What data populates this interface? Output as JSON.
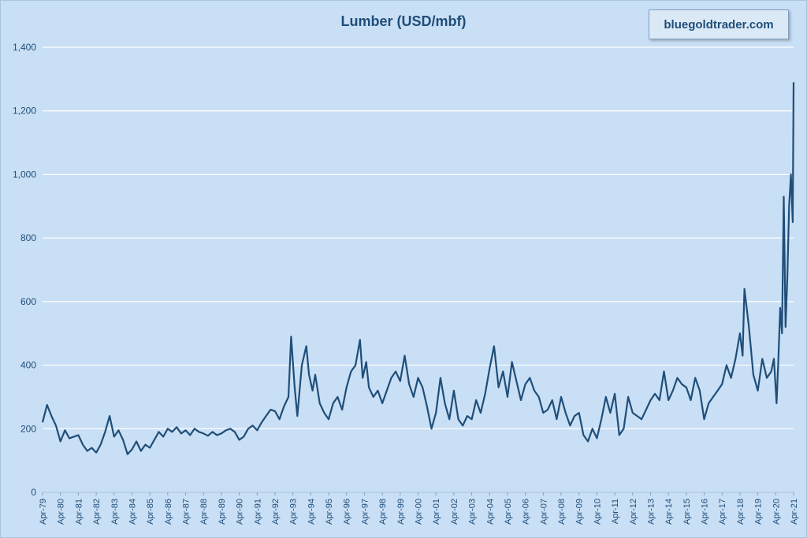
{
  "chart_data": {
    "type": "line",
    "title": "Lumber (USD/mbf)",
    "xlabel": "",
    "ylabel": "",
    "ylim": [
      0,
      1400
    ],
    "yticks": [
      0,
      200,
      400,
      600,
      800,
      1000,
      1200,
      1400
    ],
    "ytick_labels": [
      "0",
      "200",
      "400",
      "600",
      "800",
      "1,000",
      "1,200",
      "1,400"
    ],
    "xlim": [
      1979.25,
      2021.25
    ],
    "xtick_labels": [
      "Apr-79",
      "Apr-80",
      "Apr-81",
      "Apr-82",
      "Apr-83",
      "Apr-84",
      "Apr-85",
      "Apr-86",
      "Apr-87",
      "Apr-88",
      "Apr-89",
      "Apr-90",
      "Apr-91",
      "Apr-92",
      "Apr-93",
      "Apr-94",
      "Apr-95",
      "Apr-96",
      "Apr-97",
      "Apr-98",
      "Apr-99",
      "Apr-00",
      "Apr-01",
      "Apr-02",
      "Apr-03",
      "Apr-04",
      "Apr-05",
      "Apr-06",
      "Apr-07",
      "Apr-08",
      "Apr-09",
      "Apr-10",
      "Apr-11",
      "Apr-12",
      "Apr-13",
      "Apr-14",
      "Apr-15",
      "Apr-16",
      "Apr-17",
      "Apr-18",
      "Apr-19",
      "Apr-20",
      "Apr-21"
    ],
    "grid": true,
    "line_color": "#1f4e79",
    "series": [
      {
        "name": "",
        "x": [
          1979.25,
          1979.5,
          1979.75,
          1980.0,
          1980.25,
          1980.5,
          1980.75,
          1981.0,
          1981.25,
          1981.5,
          1981.75,
          1982.0,
          1982.25,
          1982.5,
          1982.75,
          1983.0,
          1983.25,
          1983.5,
          1983.75,
          1984.0,
          1984.25,
          1984.5,
          1984.75,
          1985.0,
          1985.25,
          1985.5,
          1985.75,
          1986.0,
          1986.25,
          1986.5,
          1986.75,
          1987.0,
          1987.25,
          1987.5,
          1987.75,
          1988.0,
          1988.25,
          1988.5,
          1988.75,
          1989.0,
          1989.25,
          1989.5,
          1989.75,
          1990.0,
          1990.25,
          1990.5,
          1990.75,
          1991.0,
          1991.25,
          1991.5,
          1991.75,
          1992.0,
          1992.25,
          1992.5,
          1992.75,
          1993.0,
          1993.15,
          1993.35,
          1993.5,
          1993.75,
          1994.0,
          1994.15,
          1994.35,
          1994.5,
          1994.75,
          1995.0,
          1995.25,
          1995.5,
          1995.75,
          1996.0,
          1996.25,
          1996.5,
          1996.75,
          1997.0,
          1997.15,
          1997.35,
          1997.5,
          1997.75,
          1998.0,
          1998.25,
          1998.5,
          1998.75,
          1999.0,
          1999.25,
          1999.5,
          1999.75,
          2000.0,
          2000.25,
          2000.5,
          2000.75,
          2001.0,
          2001.25,
          2001.5,
          2001.75,
          2002.0,
          2002.25,
          2002.5,
          2002.75,
          2003.0,
          2003.25,
          2003.5,
          2003.75,
          2004.0,
          2004.25,
          2004.5,
          2004.75,
          2005.0,
          2005.25,
          2005.5,
          2005.75,
          2006.0,
          2006.25,
          2006.5,
          2006.75,
          2007.0,
          2007.25,
          2007.5,
          2007.75,
          2008.0,
          2008.25,
          2008.5,
          2008.75,
          2009.0,
          2009.25,
          2009.5,
          2009.75,
          2010.0,
          2010.25,
          2010.5,
          2010.75,
          2011.0,
          2011.25,
          2011.5,
          2011.75,
          2012.0,
          2012.25,
          2012.5,
          2012.75,
          2013.0,
          2013.25,
          2013.5,
          2013.75,
          2014.0,
          2014.25,
          2014.5,
          2014.75,
          2015.0,
          2015.25,
          2015.5,
          2015.75,
          2016.0,
          2016.25,
          2016.5,
          2016.75,
          2017.0,
          2017.25,
          2017.5,
          2017.75,
          2018.0,
          2018.25,
          2018.4,
          2018.5,
          2018.75,
          2019.0,
          2019.25,
          2019.5,
          2019.75,
          2020.0,
          2020.15,
          2020.3,
          2020.4,
          2020.5,
          2020.6,
          2020.7,
          2020.8,
          2020.9,
          2021.0,
          2021.1,
          2021.2,
          2021.25
        ],
        "values": [
          220,
          275,
          240,
          210,
          160,
          195,
          170,
          175,
          180,
          150,
          130,
          140,
          125,
          150,
          190,
          240,
          175,
          195,
          165,
          120,
          135,
          160,
          130,
          150,
          140,
          165,
          190,
          175,
          200,
          190,
          205,
          185,
          195,
          180,
          200,
          190,
          185,
          178,
          190,
          180,
          185,
          195,
          200,
          190,
          165,
          175,
          200,
          210,
          195,
          220,
          240,
          260,
          255,
          230,
          270,
          300,
          490,
          330,
          240,
          400,
          460,
          370,
          320,
          370,
          280,
          250,
          230,
          280,
          300,
          260,
          330,
          380,
          400,
          480,
          360,
          410,
          330,
          300,
          320,
          280,
          320,
          360,
          380,
          350,
          430,
          340,
          300,
          360,
          330,
          270,
          200,
          250,
          360,
          280,
          230,
          320,
          230,
          210,
          240,
          230,
          290,
          250,
          310,
          390,
          460,
          330,
          380,
          300,
          410,
          350,
          290,
          340,
          360,
          320,
          300,
          250,
          260,
          290,
          230,
          300,
          250,
          210,
          240,
          250,
          180,
          160,
          200,
          170,
          230,
          300,
          250,
          310,
          180,
          200,
          300,
          250,
          240,
          230,
          260,
          290,
          310,
          290,
          380,
          290,
          320,
          360,
          340,
          330,
          290,
          360,
          320,
          230,
          280,
          300,
          320,
          340,
          400,
          360,
          420,
          500,
          430,
          640,
          520,
          370,
          320,
          420,
          360,
          380,
          420,
          280,
          420,
          580,
          500,
          930,
          520,
          680,
          900,
          1000,
          850,
          1290
        ]
      }
    ]
  }
}
